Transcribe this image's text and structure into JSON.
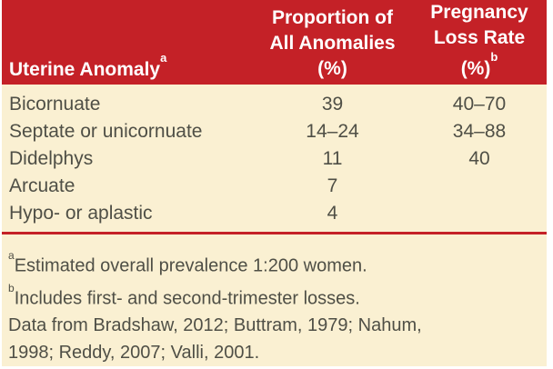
{
  "table": {
    "colors": {
      "header_bg": "#c42127",
      "header_text": "#ffffff",
      "body_bg": "#faf0d2",
      "body_text": "#4f4f46",
      "divider": "#c42127"
    },
    "header": {
      "anomaly": {
        "label": "Uterine Anomaly",
        "sup": "a"
      },
      "proportion": {
        "lines": [
          "Proportion of",
          "All Anomalies",
          "(%)"
        ]
      },
      "loss_rate": {
        "lines": [
          "Pregnancy",
          "Loss Rate",
          "(%)"
        ],
        "sup": "b"
      }
    },
    "rows": [
      {
        "anomaly": "Bicornuate",
        "proportion": "39",
        "loss_rate": "40–70"
      },
      {
        "anomaly": "Septate or unicornuate",
        "proportion": "14–24",
        "loss_rate": "34–88"
      },
      {
        "anomaly": "Didelphys",
        "proportion": "11",
        "loss_rate": "40"
      },
      {
        "anomaly": "Arcuate",
        "proportion": "7",
        "loss_rate": ""
      },
      {
        "anomaly": "Hypo- or aplastic",
        "proportion": "4",
        "loss_rate": ""
      }
    ],
    "footnotes": [
      {
        "sup": "a",
        "text": "Estimated overall prevalence 1:200 women."
      },
      {
        "sup": "b",
        "text": "Includes first- and second-trimester losses."
      },
      {
        "sup": "",
        "text": "Data from Bradshaw, 2012; Buttram, 1979; Nahum,\n1998; Reddy, 2007; Valli, 2001."
      }
    ]
  }
}
